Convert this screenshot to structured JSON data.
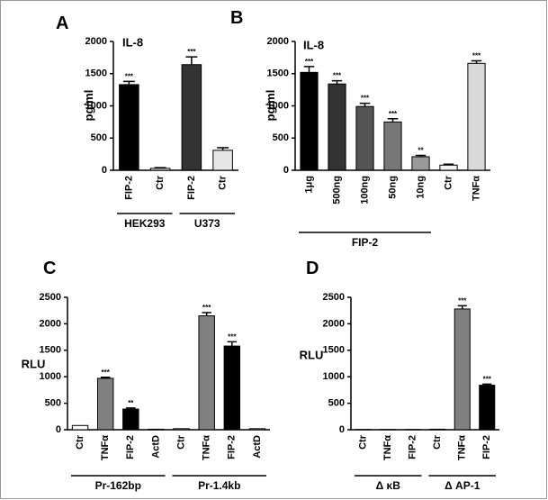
{
  "chart_data": [
    {
      "type": "bar",
      "label": "A",
      "title": "IL-8",
      "y_label": "pg/ml",
      "ylim": [
        0,
        2000
      ],
      "yticks": [
        0,
        500,
        1000,
        1500,
        2000
      ],
      "groups": [
        {
          "name": "HEK293",
          "bars": [
            {
              "label": "FIP-2",
              "value": 1330,
              "error": 50,
              "color": "#000000",
              "annotation": "***"
            },
            {
              "label": "Ctr",
              "value": 30,
              "error": 10,
              "color": "#f2f2f2",
              "annotation": null
            }
          ]
        },
        {
          "name": "U373",
          "bars": [
            {
              "label": "FIP-2",
              "value": 1640,
              "error": 120,
              "color": "#333333",
              "annotation": "***"
            },
            {
              "label": "Ctr",
              "value": 310,
              "error": 40,
              "color": "#e6e6e6",
              "annotation": null
            }
          ]
        }
      ]
    },
    {
      "type": "bar",
      "label": "B",
      "title": "IL-8",
      "y_label": "pg/ml",
      "ylim": [
        0,
        2000
      ],
      "yticks": [
        0,
        500,
        1000,
        1500,
        2000
      ],
      "groups": [
        {
          "name": "FIP-2",
          "bars": [
            {
              "label": "1μg",
              "value": 1520,
              "error": 90,
              "color": "#000000",
              "annotation": "***"
            },
            {
              "label": "500ng",
              "value": 1340,
              "error": 50,
              "color": "#333333",
              "annotation": "***"
            },
            {
              "label": "100ng",
              "value": 990,
              "error": 50,
              "color": "#555555",
              "annotation": "***"
            },
            {
              "label": "50ng",
              "value": 750,
              "error": 50,
              "color": "#777777",
              "annotation": "***"
            },
            {
              "label": "10ng",
              "value": 210,
              "error": 20,
              "color": "#999999",
              "annotation": "**"
            }
          ]
        },
        {
          "name": null,
          "bars": [
            {
              "label": "Ctr",
              "value": 80,
              "error": 15,
              "color": "#f2f2f2",
              "annotation": null
            },
            {
              "label": "TNFα",
              "value": 1660,
              "error": 40,
              "color": "#d9d9d9",
              "annotation": "***"
            }
          ]
        }
      ]
    },
    {
      "type": "bar",
      "label": "C",
      "title": null,
      "y_label": "RLU",
      "ylim": [
        0,
        2500
      ],
      "yticks": [
        0,
        500,
        1000,
        1500,
        2000,
        2500
      ],
      "groups": [
        {
          "name": "Pr-162bp",
          "bars": [
            {
              "label": "Ctr",
              "value": 80,
              "error": 0,
              "color": "#ffffff",
              "annotation": null
            },
            {
              "label": "TNFα",
              "value": 970,
              "error": 20,
              "color": "#808080",
              "annotation": "***"
            },
            {
              "label": "FIP-2",
              "value": 390,
              "error": 20,
              "color": "#000000",
              "annotation": "**"
            },
            {
              "label": "ActD",
              "value": 10,
              "error": 0,
              "color": "#ffffff",
              "annotation": null
            }
          ]
        },
        {
          "name": "Pr-1.4kb",
          "bars": [
            {
              "label": "Ctr",
              "value": 20,
              "error": 0,
              "color": "#ffffff",
              "annotation": null
            },
            {
              "label": "TNFα",
              "value": 2150,
              "error": 60,
              "color": "#808080",
              "annotation": "***"
            },
            {
              "label": "FIP-2",
              "value": 1580,
              "error": 80,
              "color": "#000000",
              "annotation": "***"
            },
            {
              "label": "ActD",
              "value": 20,
              "error": 0,
              "color": "#ffffff",
              "annotation": null
            }
          ]
        }
      ]
    },
    {
      "type": "bar",
      "label": "D",
      "title": null,
      "y_label": "RLU",
      "ylim": [
        0,
        2500
      ],
      "yticks": [
        0,
        500,
        1000,
        1500,
        2000,
        2500
      ],
      "groups": [
        {
          "name": "Δ κB",
          "bars": [
            {
              "label": "Ctr",
              "value": 5,
              "error": 0,
              "color": "#ffffff",
              "annotation": null
            },
            {
              "label": "TNFα",
              "value": 5,
              "error": 0,
              "color": "#808080",
              "annotation": null
            },
            {
              "label": "FIP-2",
              "value": 5,
              "error": 0,
              "color": "#000000",
              "annotation": null
            }
          ]
        },
        {
          "name": "Δ AP-1",
          "bars": [
            {
              "label": "Ctr",
              "value": 10,
              "error": 0,
              "color": "#ffffff",
              "annotation": null
            },
            {
              "label": "TNFα",
              "value": 2280,
              "error": 60,
              "color": "#808080",
              "annotation": "***"
            },
            {
              "label": "FIP-2",
              "value": 840,
              "error": 20,
              "color": "#000000",
              "annotation": "***"
            }
          ]
        }
      ]
    }
  ]
}
